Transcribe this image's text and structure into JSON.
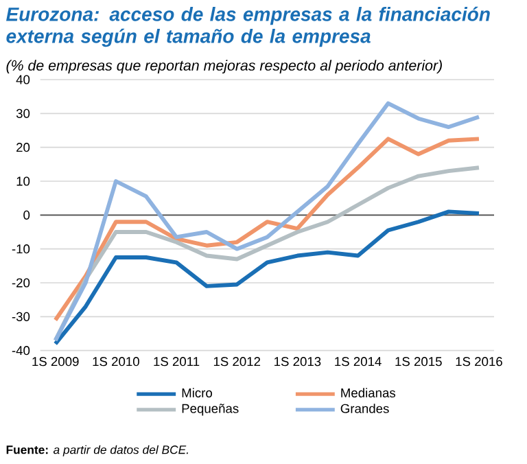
{
  "chart_data": {
    "type": "line",
    "title": "Eurozona: acceso de las empresas a la financiación externa según el tamaño de la empresa",
    "subtitle": "(% de empresas que reportan mejoras respecto al periodo anterior)",
    "categories": [
      "1S 2009",
      null,
      "1S 2010",
      null,
      "1S 2011",
      null,
      "1S 2012",
      null,
      "1S 2013",
      null,
      "1S 2014",
      null,
      "1S 2015",
      null,
      "1S 2016"
    ],
    "series": [
      {
        "name": "Micro",
        "color": "#1a6fb5",
        "values": [
          -38,
          -27,
          -12.5,
          -12.5,
          -14,
          -21,
          -20.5,
          -14,
          -12,
          -11,
          -12,
          -4.5,
          -2,
          1,
          0.5
        ]
      },
      {
        "name": "Medianas",
        "color": "#f0956a",
        "values": [
          -31,
          -18,
          -2,
          -2,
          -7,
          -9,
          -8,
          -2,
          -4,
          6,
          14,
          22.5,
          18,
          22,
          22.5
        ]
      },
      {
        "name": "Pequeñas",
        "color": "#b4bfc3",
        "values": [
          -37,
          -19,
          -5,
          -5,
          -8,
          -12,
          -13,
          -9,
          -5,
          -2,
          3,
          8,
          11.5,
          13,
          14
        ]
      },
      {
        "name": "Grandes",
        "color": "#8fb3e0",
        "values": [
          -37,
          -20,
          10,
          5.5,
          -6.5,
          -5,
          -10,
          -6.5,
          1,
          8.5,
          21,
          33,
          28.5,
          26,
          29
        ]
      }
    ],
    "ylim": [
      -40,
      40
    ],
    "yticks": [
      -40,
      -30,
      -20,
      -10,
      0,
      10,
      20,
      30,
      40
    ],
    "grid": "y",
    "legend": "bottom",
    "line_style": "solid",
    "marker": "none",
    "annotations": [
      "**Fuente:** *a partir de datos del BCE.*"
    ]
  }
}
